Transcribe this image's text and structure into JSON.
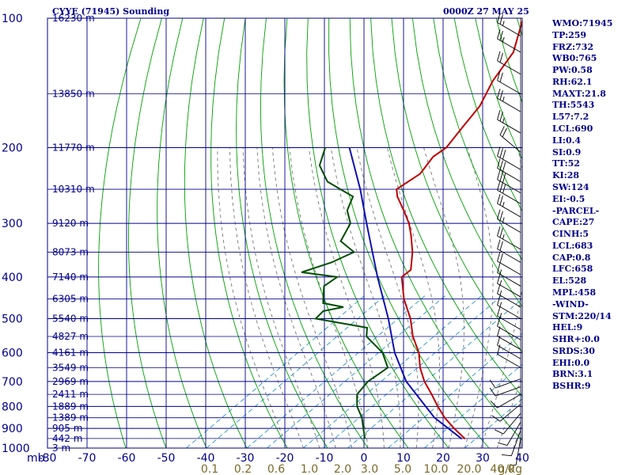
{
  "header": {
    "station": "CYYE (71945) Sounding",
    "date": "0000Z 27 MAY 25"
  },
  "indices": [
    "WMO:71945",
    "TP:259",
    "FRZ:732",
    "WB0:765",
    "PW:0.58",
    "RH:62.1",
    "MAXT:21.8",
    "TH:5543",
    "L57:7.2",
    "LCL:690",
    "LI:0.4",
    "SI:0.9",
    "TT:52",
    "KI:28",
    "SW:124",
    "EI:-0.5",
    "-PARCEL-",
    "CAPE:27",
    "CINH:5",
    "LCL:683",
    "CAP:0.8",
    "LFC:658",
    "EL:528",
    "MPL:458",
    "-WIND-",
    "STM:220/14",
    "HEL:9",
    "SHR+:0.0",
    "SRDS:30",
    "EHI:0.0",
    "BRN:3.1",
    "BSHR:9"
  ],
  "chart_data": {
    "type": "line",
    "subtype": "skew-T log-P sounding",
    "colors": {
      "grid": "#00008b",
      "dry_adiabat": "#00a000",
      "temperature": "#c00000",
      "dewpoint": "#004d00",
      "parcel": "#1010b0",
      "moist_adiabat": "#777777",
      "mixing_ratio": "#3399cc"
    },
    "pressure_levels": [
      100,
      200,
      300,
      400,
      500,
      600,
      700,
      800,
      900,
      1000
    ],
    "height_labels": [
      {
        "p": 100,
        "label": "16230 m"
      },
      {
        "p": 150,
        "label": "13850 m"
      },
      {
        "p": 200,
        "label": "11770 m"
      },
      {
        "p": 250,
        "label": "10310 m"
      },
      {
        "p": 300,
        "label": "9120 m"
      },
      {
        "p": 350,
        "label": "8073 m"
      },
      {
        "p": 400,
        "label": "7140 m"
      },
      {
        "p": 450,
        "label": "6305 m"
      },
      {
        "p": 500,
        "label": "5540 m"
      },
      {
        "p": 550,
        "label": "4827 m"
      },
      {
        "p": 600,
        "label": "4161 m"
      },
      {
        "p": 650,
        "label": "3549 m"
      },
      {
        "p": 700,
        "label": "2969 m"
      },
      {
        "p": 750,
        "label": "2411 m"
      },
      {
        "p": 800,
        "label": "1889 m"
      },
      {
        "p": 850,
        "label": "1389 m"
      },
      {
        "p": 900,
        "label": "905 m"
      },
      {
        "p": 950,
        "label": "442 m"
      },
      {
        "p": 1000,
        "label": "3 m"
      }
    ],
    "temperature_ticks": [
      -80,
      -70,
      -60,
      -50,
      -40,
      -30,
      -20,
      -10,
      0,
      10,
      20,
      30,
      40
    ],
    "pressure_unit_label": "mb",
    "mixing_ratio_labels": [
      {
        "value": "0.1",
        "t": -45
      },
      {
        "value": "0.2",
        "t": -40
      },
      {
        "value": "0.6",
        "t": -30
      },
      {
        "value": "1.0",
        "t": -25
      },
      {
        "value": "2.0",
        "t": -16
      },
      {
        "value": "3.0",
        "t": -11
      },
      {
        "value": "5.0",
        "t": -5
      },
      {
        "value": "10.0",
        "t": 5
      },
      {
        "value": "20.0",
        "t": 14
      },
      {
        "value": "40.0",
        "t": 24
      }
    ],
    "mixing_ratio_unit": "g/kg",
    "temperature": [
      {
        "p": 952,
        "t": 21.8
      },
      {
        "p": 900,
        "t": 16.5
      },
      {
        "p": 850,
        "t": 11.5
      },
      {
        "p": 800,
        "t": 7.0
      },
      {
        "p": 750,
        "t": 2.5
      },
      {
        "p": 700,
        "t": -2.5
      },
      {
        "p": 650,
        "t": -7.0
      },
      {
        "p": 600,
        "t": -11.0
      },
      {
        "p": 550,
        "t": -16.5
      },
      {
        "p": 500,
        "t": -21.5
      },
      {
        "p": 450,
        "t": -28.0
      },
      {
        "p": 400,
        "t": -34.0
      },
      {
        "p": 385,
        "t": -33.5
      },
      {
        "p": 350,
        "t": -37.5
      },
      {
        "p": 320,
        "t": -42.0
      },
      {
        "p": 300,
        "t": -45.5
      },
      {
        "p": 280,
        "t": -50.0
      },
      {
        "p": 260,
        "t": -55.0
      },
      {
        "p": 250,
        "t": -57.0
      },
      {
        "p": 230,
        "t": -55.0
      },
      {
        "p": 210,
        "t": -56.0
      },
      {
        "p": 200,
        "t": -55.0
      },
      {
        "p": 180,
        "t": -56.0
      },
      {
        "p": 160,
        "t": -57.0
      },
      {
        "p": 140,
        "t": -60.0
      },
      {
        "p": 120,
        "t": -62.0
      },
      {
        "p": 100,
        "t": -68.0
      }
    ],
    "dewpoint": [
      {
        "p": 952,
        "t": -3.0
      },
      {
        "p": 900,
        "t": -6.0
      },
      {
        "p": 850,
        "t": -9.0
      },
      {
        "p": 800,
        "t": -13.0
      },
      {
        "p": 750,
        "t": -16.0
      },
      {
        "p": 700,
        "t": -16.5
      },
      {
        "p": 650,
        "t": -15.0
      },
      {
        "p": 600,
        "t": -20.0
      },
      {
        "p": 550,
        "t": -28.0
      },
      {
        "p": 525,
        "t": -30.0
      },
      {
        "p": 500,
        "t": -45.0
      },
      {
        "p": 480,
        "t": -45.0
      },
      {
        "p": 470,
        "t": -41.0
      },
      {
        "p": 460,
        "t": -47.0
      },
      {
        "p": 440,
        "t": -49.0
      },
      {
        "p": 420,
        "t": -51.0
      },
      {
        "p": 400,
        "t": -50.0
      },
      {
        "p": 390,
        "t": -60.0
      },
      {
        "p": 370,
        "t": -55.0
      },
      {
        "p": 350,
        "t": -52.0
      },
      {
        "p": 330,
        "t": -58.0
      },
      {
        "p": 300,
        "t": -60.0
      },
      {
        "p": 280,
        "t": -64.0
      },
      {
        "p": 260,
        "t": -66.0
      },
      {
        "p": 240,
        "t": -76.0
      },
      {
        "p": 220,
        "t": -82.0
      },
      {
        "p": 200,
        "t": -85.0
      }
    ],
    "parcel": [
      {
        "p": 952,
        "t": 21.0
      },
      {
        "p": 850,
        "t": 9.0
      },
      {
        "p": 700,
        "t": -7.0
      },
      {
        "p": 600,
        "t": -17.0
      },
      {
        "p": 500,
        "t": -27.0
      },
      {
        "p": 400,
        "t": -40.0
      },
      {
        "p": 300,
        "t": -56.0
      },
      {
        "p": 250,
        "t": -66.0
      },
      {
        "p": 200,
        "t": -79.0
      }
    ],
    "wind_barbs": [
      {
        "p": 110,
        "dir": 300,
        "spd": 25
      },
      {
        "p": 120,
        "dir": 300,
        "spd": 25
      },
      {
        "p": 135,
        "dir": 300,
        "spd": 20
      },
      {
        "p": 150,
        "dir": 300,
        "spd": 20
      },
      {
        "p": 165,
        "dir": 300,
        "spd": 25
      },
      {
        "p": 185,
        "dir": 300,
        "spd": 25
      },
      {
        "p": 205,
        "dir": 310,
        "spd": 20
      },
      {
        "p": 225,
        "dir": 300,
        "spd": 30
      },
      {
        "p": 240,
        "dir": 300,
        "spd": 30
      },
      {
        "p": 255,
        "dir": 300,
        "spd": 30
      },
      {
        "p": 270,
        "dir": 300,
        "spd": 30
      },
      {
        "p": 290,
        "dir": 300,
        "spd": 25
      },
      {
        "p": 315,
        "dir": 300,
        "spd": 25
      },
      {
        "p": 345,
        "dir": 300,
        "spd": 25
      },
      {
        "p": 370,
        "dir": 300,
        "spd": 20
      },
      {
        "p": 395,
        "dir": 300,
        "spd": 20
      },
      {
        "p": 420,
        "dir": 300,
        "spd": 15
      },
      {
        "p": 445,
        "dir": 300,
        "spd": 15
      },
      {
        "p": 470,
        "dir": 300,
        "spd": 15
      },
      {
        "p": 500,
        "dir": 300,
        "spd": 15
      },
      {
        "p": 530,
        "dir": 300,
        "spd": 15
      },
      {
        "p": 560,
        "dir": 300,
        "spd": 10
      },
      {
        "p": 590,
        "dir": 300,
        "spd": 10
      },
      {
        "p": 620,
        "dir": 300,
        "spd": 10
      },
      {
        "p": 650,
        "dir": 300,
        "spd": 10
      },
      {
        "p": 690,
        "dir": 250,
        "spd": 10
      },
      {
        "p": 720,
        "dir": 250,
        "spd": 10
      },
      {
        "p": 750,
        "dir": 240,
        "spd": 10
      },
      {
        "p": 790,
        "dir": 230,
        "spd": 10
      },
      {
        "p": 830,
        "dir": 220,
        "spd": 10
      },
      {
        "p": 870,
        "dir": 210,
        "spd": 10
      },
      {
        "p": 910,
        "dir": 200,
        "spd": 10
      },
      {
        "p": 950,
        "dir": 190,
        "spd": 5
      }
    ]
  }
}
